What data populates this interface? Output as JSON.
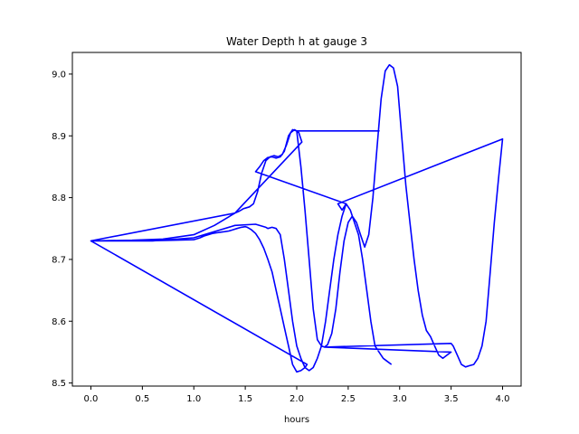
{
  "chart_data": {
    "type": "line",
    "title": "Water Depth h at gauge 3",
    "xlabel": "hours",
    "ylabel": "",
    "xlim": [
      -0.18,
      4.18
    ],
    "ylim": [
      8.495,
      9.035
    ],
    "xticks": [
      "0.0",
      "0.5",
      "1.0",
      "1.5",
      "2.0",
      "2.5",
      "3.0",
      "3.5",
      "4.0"
    ],
    "xtick_values": [
      0,
      0.5,
      1.0,
      1.5,
      2.0,
      2.5,
      3.0,
      3.5,
      4.0
    ],
    "yticks": [
      "8.5",
      "8.6",
      "8.7",
      "8.8",
      "8.9",
      "9.0"
    ],
    "ytick_values": [
      8.5,
      8.6,
      8.7,
      8.8,
      8.9,
      9.0
    ],
    "grid": false,
    "color": "#0000ff",
    "series": [
      {
        "x": [
          0.0,
          0.5,
          0.8,
          1.0,
          1.06,
          1.1,
          1.14,
          1.18,
          1.22,
          1.26,
          1.3,
          1.34,
          1.38,
          1.42,
          1.46,
          1.5,
          1.52,
          1.56,
          1.6,
          1.64,
          1.68,
          1.72,
          1.76,
          1.8,
          1.84,
          1.88,
          1.92,
          1.96,
          2.0,
          2.04,
          2.08,
          2.1,
          0.0,
          0.4,
          0.7,
          1.0,
          1.2,
          1.4,
          1.44,
          1.46,
          1.48,
          1.5,
          1.54,
          1.58,
          1.62,
          1.66,
          1.7,
          1.74,
          1.78,
          1.82,
          1.86,
          1.9,
          1.94,
          1.98,
          2.02,
          2.05,
          1.4,
          0.0,
          0.6,
          1.0,
          1.2,
          1.4,
          1.6,
          1.7,
          1.72,
          1.76,
          1.8,
          1.84,
          1.88,
          1.92,
          1.96,
          2.0,
          2.04,
          2.08,
          2.12,
          2.16,
          2.2,
          2.24,
          2.28,
          2.32,
          2.36,
          2.4,
          2.44,
          2.48,
          1.6,
          1.64,
          1.68,
          1.72,
          1.76,
          1.8,
          1.84,
          1.88,
          1.92,
          1.96,
          2.0,
          2.8,
          2.0,
          2.04,
          2.08,
          2.12,
          2.16,
          2.2,
          2.24,
          2.27,
          2.3,
          2.34,
          2.38,
          2.42,
          2.46,
          2.5,
          2.54,
          2.58,
          2.62,
          2.66,
          2.7,
          2.74,
          2.78,
          2.82,
          2.86,
          2.9,
          2.94,
          2.98,
          3.02,
          3.06,
          3.1,
          3.14,
          3.18,
          3.22,
          3.26,
          3.3,
          3.34,
          3.38,
          3.42,
          3.46,
          3.5,
          2.27,
          3.5,
          3.52,
          3.56,
          3.6,
          3.64,
          3.68,
          3.72,
          3.76,
          3.8,
          3.84,
          3.88,
          3.92,
          3.96,
          4.0,
          2.4,
          2.44,
          2.48,
          2.52,
          2.56,
          2.6,
          2.64,
          2.68,
          2.72,
          2.76,
          2.8,
          2.84,
          2.88,
          2.92
        ],
        "y": [
          8.73,
          8.73,
          8.731,
          8.732,
          8.735,
          8.738,
          8.74,
          8.742,
          8.743,
          8.744,
          8.745,
          8.746,
          8.748,
          8.75,
          8.752,
          8.753,
          8.752,
          8.748,
          8.742,
          8.732,
          8.718,
          8.7,
          8.68,
          8.65,
          8.62,
          8.59,
          8.56,
          8.53,
          8.518,
          8.52,
          8.525,
          8.53,
          8.73,
          8.731,
          8.733,
          8.74,
          8.755,
          8.775,
          8.778,
          8.78,
          8.782,
          8.783,
          8.785,
          8.79,
          8.81,
          8.84,
          8.86,
          8.866,
          8.868,
          8.866,
          8.87,
          8.885,
          8.905,
          8.91,
          8.905,
          8.89,
          8.775,
          8.73,
          8.73,
          8.735,
          8.745,
          8.755,
          8.757,
          8.752,
          8.75,
          8.752,
          8.75,
          8.74,
          8.7,
          8.65,
          8.6,
          8.56,
          8.54,
          8.525,
          8.52,
          8.525,
          8.54,
          8.56,
          8.6,
          8.65,
          8.7,
          8.74,
          8.77,
          8.79,
          8.842,
          8.85,
          8.86,
          8.865,
          8.866,
          8.864,
          8.866,
          8.875,
          8.9,
          8.91,
          8.908,
          8.908,
          8.908,
          8.85,
          8.78,
          8.7,
          8.62,
          8.57,
          8.56,
          8.558,
          8.562,
          8.58,
          8.62,
          8.68,
          8.73,
          8.76,
          8.77,
          8.76,
          8.74,
          8.72,
          8.74,
          8.8,
          8.88,
          8.96,
          9.005,
          9.015,
          9.01,
          8.98,
          8.9,
          8.82,
          8.76,
          8.7,
          8.65,
          8.61,
          8.585,
          8.575,
          8.56,
          8.545,
          8.54,
          8.545,
          8.55,
          8.558,
          8.564,
          8.56,
          8.545,
          8.53,
          8.526,
          8.528,
          8.53,
          8.54,
          8.56,
          8.6,
          8.68,
          8.76,
          8.83,
          8.895,
          8.79,
          8.78,
          8.79,
          8.78,
          8.76,
          8.74,
          8.7,
          8.65,
          8.6,
          8.56,
          8.55,
          8.54,
          8.535,
          8.53
        ]
      }
    ]
  }
}
